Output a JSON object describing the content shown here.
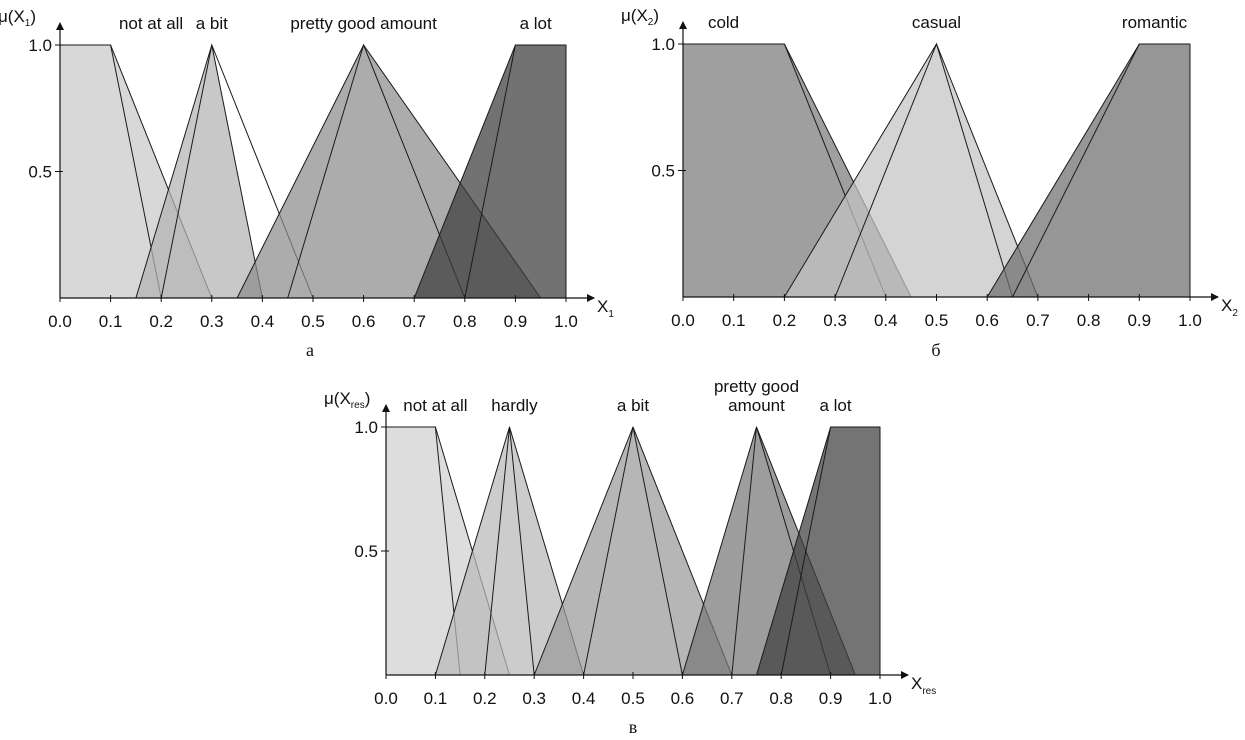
{
  "chart_data": [
    {
      "type": "area",
      "panel_caption": "а",
      "ylabel": "μ(X",
      "ylabel_sub": "1",
      "ylabel_tail": ")",
      "xlabel": "X",
      "xlabel_sub": "1",
      "xlim": [
        0,
        1
      ],
      "ylim": [
        0,
        1
      ],
      "x_ticks": [
        "0.0",
        "0.1",
        "0.2",
        "0.3",
        "0.4",
        "0.5",
        "0.6",
        "0.7",
        "0.8",
        "0.9",
        "1.0"
      ],
      "y_ticks": [
        {
          "value": 1.0,
          "label": "1.0"
        },
        {
          "value": 0.5,
          "label": "0.5"
        }
      ],
      "grid": false,
      "terms": [
        {
          "label": "not at all",
          "label_x": 0.18,
          "points": [
            [
              0,
              1
            ],
            [
              0.1,
              1
            ],
            [
              0.3,
              0
            ]
          ],
          "alt_points": [
            [
              0,
              1
            ],
            [
              0.1,
              1
            ],
            [
              0.2,
              0
            ]
          ],
          "color": "#c9c9c9"
        },
        {
          "label": "a bit",
          "label_x": 0.3,
          "points": [
            [
              0.15,
              0
            ],
            [
              0.3,
              1
            ],
            [
              0.4,
              0
            ]
          ],
          "alt_points": [
            [
              0.2,
              0
            ],
            [
              0.3,
              1
            ],
            [
              0.5,
              0
            ]
          ],
          "color": "#b3b3b3"
        },
        {
          "label": "pretty good amount",
          "label_x": 0.6,
          "points": [
            [
              0.35,
              0
            ],
            [
              0.6,
              1
            ],
            [
              0.95,
              0
            ]
          ],
          "alt_points": [
            [
              0.45,
              0
            ],
            [
              0.6,
              1
            ],
            [
              0.8,
              0
            ]
          ],
          "color": "#8c8c8c"
        },
        {
          "label": "a lot",
          "label_x": 0.94,
          "points": [
            [
              0.7,
              0
            ],
            [
              0.9,
              1
            ],
            [
              1.0,
              1
            ]
          ],
          "alt_points": [
            [
              0.8,
              0
            ],
            [
              0.9,
              1
            ],
            [
              1.0,
              1
            ]
          ],
          "color": "#3c3c3c"
        }
      ]
    },
    {
      "type": "area",
      "panel_caption": "б",
      "ylabel": "μ(X",
      "ylabel_sub": "2",
      "ylabel_tail": ")",
      "xlabel": "X",
      "xlabel_sub": "2",
      "xlim": [
        0,
        1
      ],
      "ylim": [
        0,
        1
      ],
      "x_ticks": [
        "0.0",
        "0.1",
        "0.2",
        "0.3",
        "0.4",
        "0.5",
        "0.6",
        "0.7",
        "0.8",
        "0.9",
        "1.0"
      ],
      "y_ticks": [
        {
          "value": 1.0,
          "label": "1.0"
        },
        {
          "value": 0.5,
          "label": "0.5"
        }
      ],
      "grid": false,
      "terms": [
        {
          "label": "cold",
          "label_x": 0.08,
          "points": [
            [
              0,
              1
            ],
            [
              0.2,
              1
            ],
            [
              0.45,
              0
            ]
          ],
          "alt_points": [
            [
              0,
              1
            ],
            [
              0.2,
              1
            ],
            [
              0.4,
              0
            ]
          ],
          "color": "#7a7a7a"
        },
        {
          "label": "casual",
          "label_x": 0.5,
          "points": [
            [
              0.2,
              0
            ],
            [
              0.5,
              1
            ],
            [
              0.7,
              0
            ]
          ],
          "alt_points": [
            [
              0.3,
              0
            ],
            [
              0.5,
              1
            ],
            [
              0.65,
              0
            ]
          ],
          "color": "#c4c4c4"
        },
        {
          "label": "romantic",
          "label_x": 0.93,
          "points": [
            [
              0.6,
              0
            ],
            [
              0.9,
              1
            ],
            [
              1.0,
              1
            ]
          ],
          "alt_points": [
            [
              0.65,
              0
            ],
            [
              0.9,
              1
            ],
            [
              1.0,
              1
            ]
          ],
          "color": "#6e6e6e"
        }
      ]
    },
    {
      "type": "area",
      "panel_caption": "в",
      "ylabel": "μ(X",
      "ylabel_sub": "res",
      "ylabel_tail": ")",
      "xlabel": "X",
      "xlabel_sub": "res",
      "xlim": [
        0,
        1
      ],
      "ylim": [
        0,
        1
      ],
      "x_ticks": [
        "0.0",
        "0.1",
        "0.2",
        "0.3",
        "0.4",
        "0.5",
        "0.6",
        "0.7",
        "0.8",
        "0.9",
        "1.0"
      ],
      "y_ticks": [
        {
          "value": 1.0,
          "label": "1.0"
        },
        {
          "value": 0.5,
          "label": "0.5"
        }
      ],
      "grid": false,
      "terms": [
        {
          "label": "not at all",
          "label_x": 0.1,
          "points": [
            [
              0,
              1
            ],
            [
              0.1,
              1
            ],
            [
              0.25,
              0
            ]
          ],
          "alt_points": [
            [
              0,
              1
            ],
            [
              0.1,
              1
            ],
            [
              0.15,
              0
            ]
          ],
          "color": "#d0d0d0"
        },
        {
          "label": "hardly",
          "label_x": 0.26,
          "points": [
            [
              0.1,
              0
            ],
            [
              0.25,
              1
            ],
            [
              0.4,
              0
            ]
          ],
          "alt_points": [
            [
              0.2,
              0
            ],
            [
              0.25,
              1
            ],
            [
              0.3,
              0
            ]
          ],
          "color": "#b8b8b8"
        },
        {
          "label": "a bit",
          "label_x": 0.5,
          "points": [
            [
              0.3,
              0
            ],
            [
              0.5,
              1
            ],
            [
              0.7,
              0
            ]
          ],
          "alt_points": [
            [
              0.4,
              0
            ],
            [
              0.5,
              1
            ],
            [
              0.6,
              0
            ]
          ],
          "color": "#9a9a9a"
        },
        {
          "label": "pretty good amount",
          "label_lines": [
            "pretty good",
            "amount"
          ],
          "label_x": 0.75,
          "points": [
            [
              0.6,
              0
            ],
            [
              0.75,
              1
            ],
            [
              0.95,
              0
            ]
          ],
          "alt_points": [
            [
              0.7,
              0
            ],
            [
              0.75,
              1
            ],
            [
              0.9,
              0
            ]
          ],
          "color": "#777777"
        },
        {
          "label": "a lot",
          "label_x": 0.91,
          "points": [
            [
              0.75,
              0
            ],
            [
              0.9,
              1
            ],
            [
              1.0,
              1
            ]
          ],
          "alt_points": [
            [
              0.8,
              0
            ],
            [
              0.9,
              1
            ],
            [
              1.0,
              1
            ]
          ],
          "color": "#3e3e3e"
        }
      ]
    }
  ]
}
